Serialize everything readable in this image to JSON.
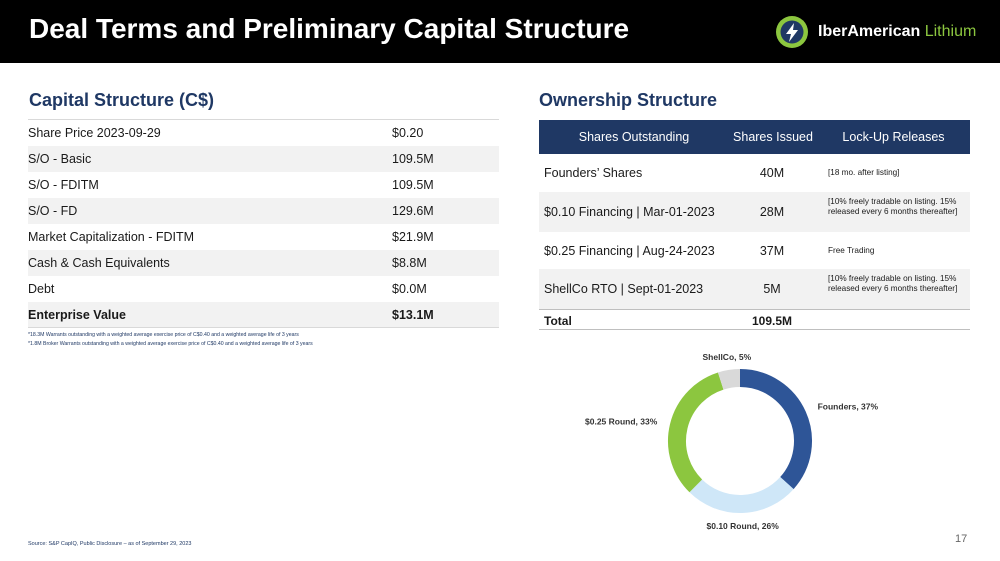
{
  "header": {
    "title": "Deal Terms and Preliminary Capital Structure",
    "logo_text_bold": "IberAmerican",
    "logo_text_light": "Lithium",
    "logo_color_dark": "#1f3864",
    "logo_color_accent": "#8cc63f"
  },
  "capital": {
    "title": "Capital Structure (C$)",
    "rows": [
      {
        "label": "Share Price 2023-09-29",
        "value": "$0.20"
      },
      {
        "label": "S/O - Basic",
        "value": "109.5M"
      },
      {
        "label": "S/O - FDITM",
        "value": "109.5M"
      },
      {
        "label": "S/O - FD",
        "value": "129.6M"
      },
      {
        "label": "Market Capitalization - FDITM",
        "value": "$21.9M"
      },
      {
        "label": "Cash & Cash Equivalents",
        "value": "$8.8M"
      },
      {
        "label": "Debt",
        "value": "$0.0M"
      },
      {
        "label": "Enterprise Value",
        "value": "$13.1M"
      }
    ],
    "footnotes": [
      "*18.3M Warrants outstanding with a weighted average exercise price of C$0.40 and a weighted average life of 3 years",
      "*1.8M Broker Warrants outstanding with a weighted average exercise price of C$0.40 and a weighted average life of 3 years"
    ]
  },
  "ownership": {
    "title": "Ownership Structure",
    "headers": [
      "Shares Outstanding",
      "Shares Issued",
      "Lock-Up Releases"
    ],
    "rows": [
      {
        "name": "Founders’ Shares",
        "issued": "40M",
        "lockup": "[18 mo. after listing]"
      },
      {
        "name": "$0.10 Financing | Mar-01-2023",
        "issued": "28M",
        "lockup": "[10% freely tradable on listing. 15% released every 6 months thereafter]"
      },
      {
        "name": "$0.25 Financing | Aug-24-2023",
        "issued": "37M",
        "lockup": "Free Trading"
      },
      {
        "name": "ShellCo RTO | Sept-01-2023",
        "issued": "5M",
        "lockup": "[10% freely tradable on listing. 15% released every 6 months thereafter]"
      }
    ],
    "total": {
      "name": "Total",
      "issued": "109.5M"
    }
  },
  "chart_data": {
    "type": "pie",
    "categories": [
      "Founders",
      "$0.10 Round",
      "$0.25 Round",
      "ShellCo"
    ],
    "values": [
      37,
      26,
      33,
      5
    ],
    "labels": [
      "Founders, 37%",
      "$0.10 Round, 26%",
      "$0.25 Round, 33%",
      "ShellCo, 5%"
    ],
    "colors": [
      "#2e5597",
      "#cfe7f8",
      "#8cc63f",
      "#d9d9d9"
    ],
    "donut": true
  },
  "footer": {
    "source": "Source: S&P CapIQ, Public Disclosure – as of September 29, 2023",
    "page_number": "17"
  }
}
